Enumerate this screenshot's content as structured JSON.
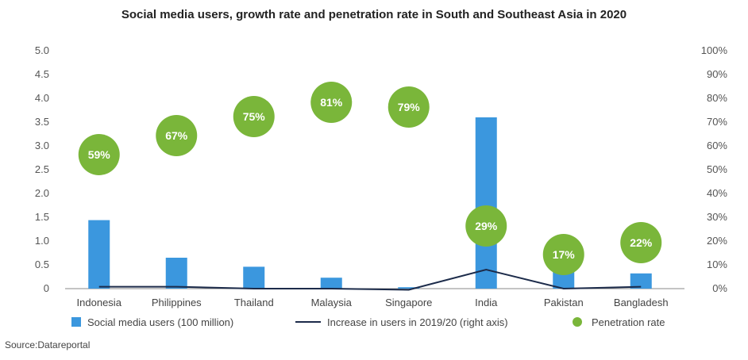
{
  "chart_data": {
    "type": "bar",
    "title": "Social media users, growth rate and penetration rate in South and Southeast Asia in 2020",
    "categories": [
      "Indonesia",
      "Philippines",
      "Thailand",
      "Malaysia",
      "Singapore",
      "India",
      "Pakistan",
      "Bangladesh"
    ],
    "series": [
      {
        "name": "Social media users (100 million)",
        "type": "bar",
        "axis": "left",
        "color": "#3b97de",
        "values": [
          1.44,
          0.65,
          0.46,
          0.23,
          0.03,
          3.6,
          0.37,
          0.32
        ]
      },
      {
        "name": "Increase in users in 2019/20 (right axis)",
        "type": "line",
        "axis": "right",
        "color": "#1c2b4a",
        "values": [
          0.008,
          0.008,
          0.0,
          0.0,
          -0.005,
          0.08,
          0.0,
          0.008
        ]
      },
      {
        "name": "Penetration rate",
        "type": "scatter",
        "axis": "right",
        "color": "#7ab63a",
        "values": [
          0.59,
          0.67,
          0.75,
          0.81,
          0.79,
          0.29,
          0.17,
          0.22
        ],
        "labels": [
          "59%",
          "67%",
          "75%",
          "81%",
          "79%",
          "29%",
          "17%",
          "22%"
        ]
      }
    ],
    "left_axis": {
      "ylim": [
        0,
        5.0
      ],
      "ticks": [
        "0",
        "0.5",
        "1.0",
        "1.5",
        "2.0",
        "2.5",
        "3.0",
        "3.5",
        "4.0",
        "4.5",
        "5.0"
      ]
    },
    "right_axis": {
      "ylim": [
        0,
        1.0
      ],
      "ticks": [
        "0%",
        "10%",
        "20%",
        "30%",
        "40%",
        "50%",
        "60%",
        "70%",
        "80%",
        "90%",
        "100%"
      ]
    },
    "legend_position": "bottom"
  },
  "source": "Source:Datareportal"
}
